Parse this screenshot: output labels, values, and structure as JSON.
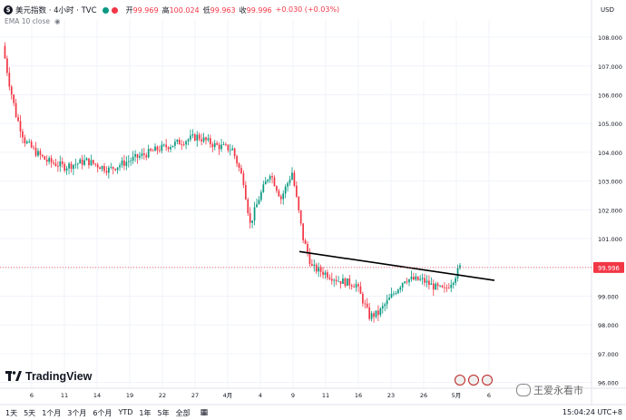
{
  "header": {
    "symbol": "美元指数 · 4小时 · TVC",
    "open_label": "开",
    "open": "99.969",
    "high_label": "高",
    "high": "100.024",
    "low_label": "低",
    "low": "99.963",
    "close_label": "收",
    "close": "99.996",
    "change": "+0.030 (+0.03%)",
    "indicator": "EMA 10 close",
    "currency": "USD"
  },
  "colors": {
    "up": "#089981",
    "down": "#f23645",
    "trendline": "#000000"
  },
  "branding": {
    "logo_text": "TradingView"
  },
  "bottom": {
    "ranges": [
      "1天",
      "5天",
      "1个月",
      "3个月",
      "6个月",
      "YTD",
      "1年",
      "5年",
      "全部"
    ],
    "clock": "15:04:24 UTC+8"
  },
  "watermark": "王爱永看市",
  "chart_data": {
    "type": "candlestick",
    "x_tick_labels": [
      "6",
      "11",
      "14",
      "19",
      "22",
      "27",
      "4月",
      "4",
      "9",
      "11",
      "16",
      "23",
      "26",
      "5月",
      "6"
    ],
    "y_ticks": [
      "108.000",
      "107.000",
      "106.000",
      "105.000",
      "104.000",
      "103.000",
      "102.000",
      "101.000",
      "100.000",
      "99.000",
      "98.000",
      "97.000",
      "96.000"
    ],
    "ylim": [
      95.8,
      108.6
    ],
    "last_price_label": "99.996",
    "last_price": 99.996,
    "trendline": {
      "start": [
        0.0,
        100.55
      ],
      "end": [
        1.0,
        99.55
      ]
    },
    "path_points": [
      [
        0,
        107.7
      ],
      [
        3,
        106.4
      ],
      [
        6,
        105.3
      ],
      [
        10,
        104.4
      ],
      [
        15,
        104.0
      ],
      [
        20,
        103.7
      ],
      [
        28,
        103.5
      ],
      [
        38,
        103.7
      ],
      [
        48,
        103.4
      ],
      [
        60,
        103.8
      ],
      [
        70,
        104.1
      ],
      [
        80,
        104.35
      ],
      [
        88,
        104.55
      ],
      [
        96,
        104.25
      ],
      [
        104,
        104.1
      ],
      [
        109,
        103.0
      ],
      [
        112,
        101.5
      ],
      [
        116,
        102.4
      ],
      [
        121,
        103.3
      ],
      [
        126,
        102.4
      ],
      [
        131,
        103.3
      ],
      [
        136,
        101.0
      ],
      [
        140,
        100.0
      ],
      [
        146,
        99.8
      ],
      [
        152,
        99.55
      ],
      [
        160,
        99.4
      ],
      [
        166,
        98.3
      ],
      [
        170,
        98.4
      ],
      [
        176,
        99.0
      ],
      [
        182,
        99.6
      ],
      [
        190,
        99.55
      ],
      [
        196,
        99.3
      ],
      [
        200,
        99.2
      ],
      [
        204,
        99.6
      ],
      [
        207,
        100.0
      ]
    ]
  }
}
